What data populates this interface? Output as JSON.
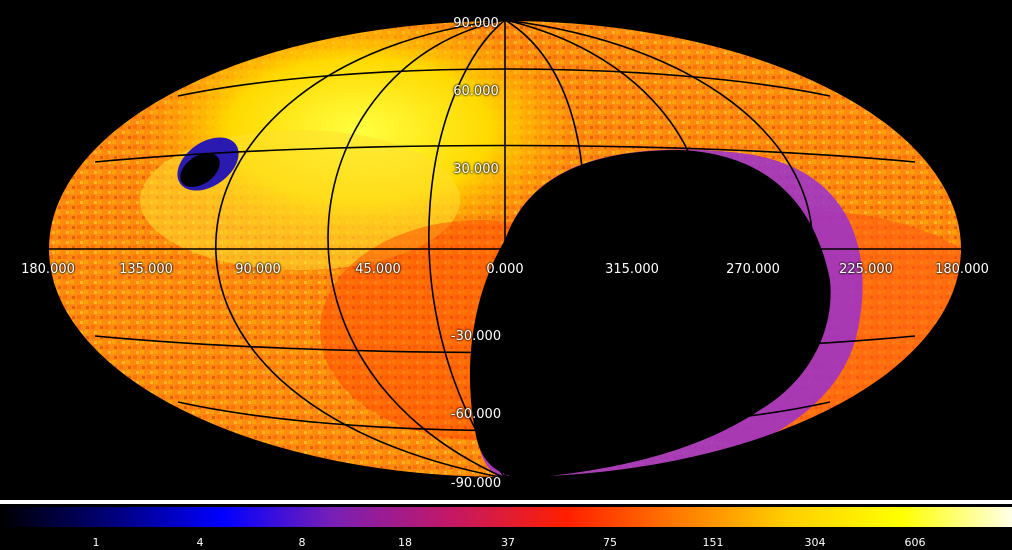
{
  "map": {
    "projection": "aitoff",
    "colormap": "heat",
    "colors": {
      "background": "#000000",
      "grid": "#000000",
      "labels": "#ffffff"
    },
    "lon_labels": [
      "180.000",
      "135.000",
      "90.000",
      "45.000",
      "0.000",
      "315.000",
      "270.000",
      "225.000",
      "180.000"
    ],
    "lat_labels": [
      "90.000",
      "60.000",
      "30.000",
      "-30.000",
      "-60.000",
      "-90.000"
    ]
  },
  "colorbar": {
    "ticks": [
      "1",
      "4",
      "8",
      "18",
      "37",
      "75",
      "151",
      "304",
      "606"
    ],
    "colors": [
      "#000000",
      "#00007a",
      "#0000ff",
      "#7a1fb5",
      "#c0186a",
      "#ff1f00",
      "#ff7a00",
      "#ffd000",
      "#ffff00",
      "#ffffe6"
    ]
  }
}
